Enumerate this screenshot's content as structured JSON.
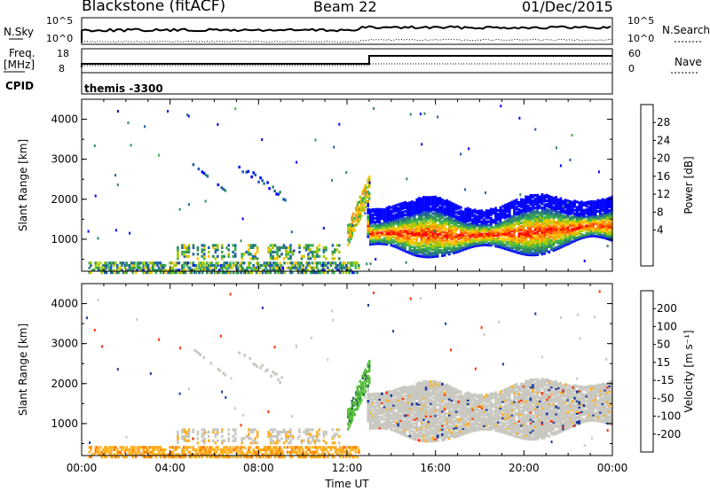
{
  "header": {
    "title": "Blackstone (fitACF)",
    "beam": "Beam 22",
    "date": "01/Dec/2015"
  },
  "left_labels": {
    "nsky": "N.Sky",
    "freq": "Freq.",
    "freq_unit": "[MHz]",
    "cpid": "CPID"
  },
  "right_labels": {
    "nsearch": "N.Search",
    "nave": "Nave"
  },
  "upper_ticks": {
    "nsky_top": "10^5",
    "nsky_bottom": "10^0",
    "freq_top": "18",
    "freq_bottom": "8",
    "nsearch_top": "10^5",
    "nsearch_bottom": "10^0",
    "nave_top": "60",
    "nave_bottom": "0"
  },
  "cpid_text": "themis -3300",
  "colorbars": {
    "power": {
      "label": "Power [dB]",
      "ticks": [
        "28",
        "24",
        "20",
        "16",
        "12",
        "8",
        "4"
      ],
      "colors": [
        "#ff0000",
        "#ff4500",
        "#ff8c00",
        "#ffc400",
        "#a8c800",
        "#3cb050",
        "#2e8a5e",
        "#1f5fa8",
        "#0000ff"
      ]
    },
    "velocity": {
      "label": "Velocity [m s⁻¹]",
      "ticks": [
        "200",
        "100",
        "50",
        "15",
        "-15",
        "-50",
        "-100",
        "-200"
      ],
      "colors": [
        "#1e3a9e",
        "#2f7a4a",
        "#55c03a",
        "#c8c8c0",
        "#c8c8c0",
        "#ffb020",
        "#ff7a00",
        "#ff3000",
        "#e00000"
      ]
    }
  },
  "chart_data": [
    {
      "type": "heatmap",
      "name": "Power",
      "xlabel": "",
      "ylabel": "Slant Range [km]",
      "ylim": [
        200,
        4500
      ],
      "xlim_hours": [
        0,
        24
      ],
      "yticks": [
        "1000",
        "2000",
        "3000",
        "4000"
      ],
      "xticks": [
        "00:00",
        "04:00",
        "08:00",
        "12:00",
        "16:00",
        "20:00",
        "00:00"
      ],
      "main_echo_band_km": [
        [
          13,
          1180
        ],
        [
          14,
          1200
        ],
        [
          15,
          1160
        ],
        [
          16,
          1180
        ],
        [
          17,
          1130
        ],
        [
          18,
          1150
        ],
        [
          19,
          1170
        ],
        [
          20,
          1200
        ],
        [
          21,
          1250
        ],
        [
          22,
          1300
        ],
        [
          23,
          1380
        ]
      ],
      "max_power_db": 28
    },
    {
      "type": "heatmap",
      "name": "Velocity",
      "xlabel": "Time UT",
      "ylabel": "Slant Range [km]",
      "ylim": [
        200,
        4500
      ],
      "xlim_hours": [
        0,
        24
      ],
      "yticks": [
        "1000",
        "2000",
        "3000",
        "4000"
      ],
      "xticks": [
        "00:00",
        "04:00",
        "08:00",
        "12:00",
        "16:00",
        "20:00",
        "00:00"
      ],
      "dominant_velocity_ms": "-15 to 15"
    }
  ]
}
